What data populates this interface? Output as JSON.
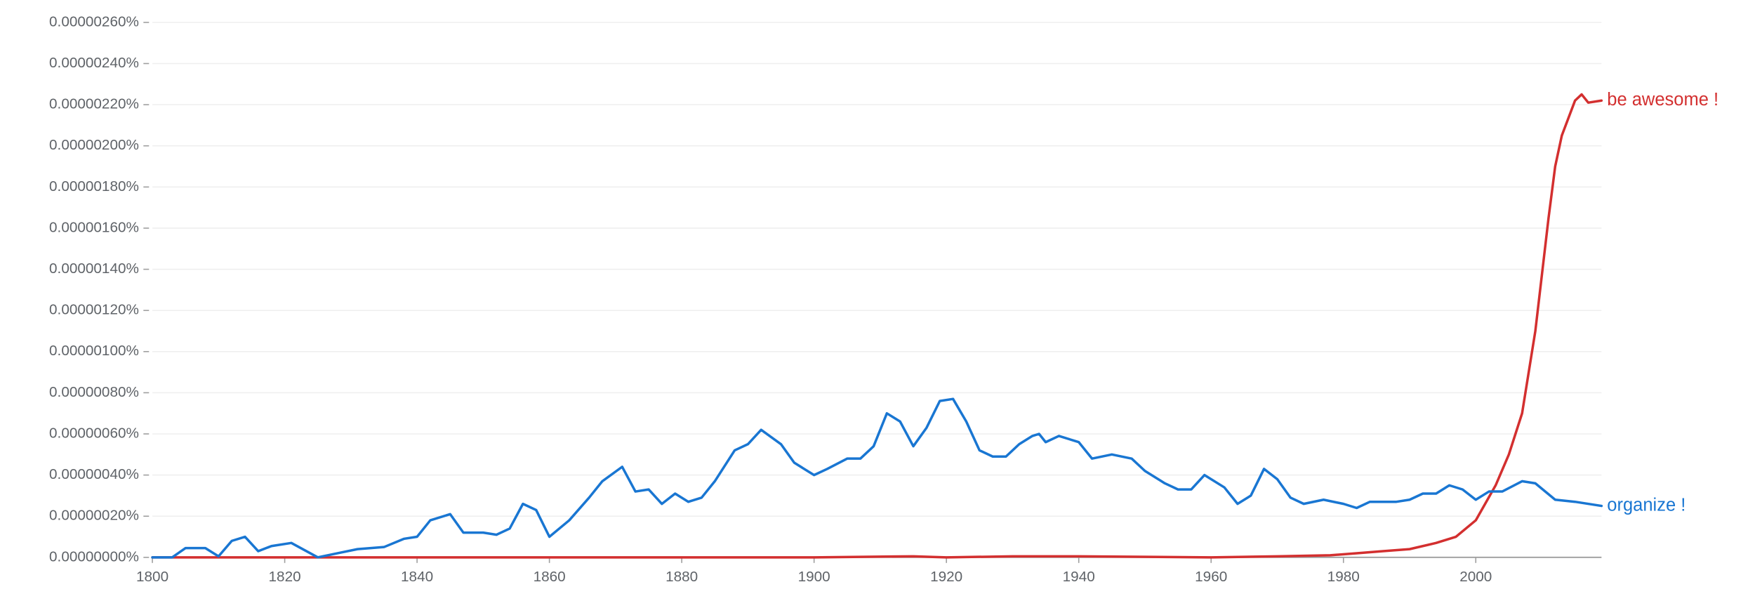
{
  "chart_data": {
    "type": "line",
    "xlim": [
      1800,
      2019
    ],
    "xticks": [
      1800,
      1820,
      1840,
      1860,
      1880,
      1900,
      1920,
      1940,
      1960,
      1980,
      2000
    ],
    "ylim": [
      0,
      2.6e-07
    ],
    "yticks": [
      {
        "value": 0,
        "label": "0.00000000%"
      },
      {
        "value": 2e-08,
        "label": "0.00000020%"
      },
      {
        "value": 4e-08,
        "label": "0.00000040%"
      },
      {
        "value": 6e-08,
        "label": "0.00000060%"
      },
      {
        "value": 8e-08,
        "label": "0.00000080%"
      },
      {
        "value": 1e-07,
        "label": "0.00000100%"
      },
      {
        "value": 1.2e-07,
        "label": "0.00000120%"
      },
      {
        "value": 1.4e-07,
        "label": "0.00000140%"
      },
      {
        "value": 1.6e-07,
        "label": "0.00000160%"
      },
      {
        "value": 1.8e-07,
        "label": "0.00000180%"
      },
      {
        "value": 2e-07,
        "label": "0.00000200%"
      },
      {
        "value": 2.2e-07,
        "label": "0.00000220%"
      },
      {
        "value": 2.4e-07,
        "label": "0.00000240%"
      },
      {
        "value": 2.6e-07,
        "label": "0.00000260%"
      }
    ],
    "grid": true,
    "series": [
      {
        "name": "be awesome !",
        "color": "#d32f2f",
        "x": [
          1800,
          1850,
          1900,
          1915,
          1920,
          1930,
          1940,
          1960,
          1970,
          1978,
          1982,
          1986,
          1990,
          1994,
          1997,
          2000,
          2003,
          2005,
          2007,
          2009,
          2011,
          2012,
          2013,
          2015,
          2016,
          2017,
          2019
        ],
        "values": [
          0,
          0,
          0,
          5e-10,
          0,
          5e-10,
          5e-10,
          0,
          5e-10,
          1e-09,
          2e-09,
          3e-09,
          4e-09,
          7e-09,
          1e-08,
          1.8e-08,
          3.5e-08,
          5e-08,
          7e-08,
          1.1e-07,
          1.65e-07,
          1.9e-07,
          2.05e-07,
          2.22e-07,
          2.25e-07,
          2.21e-07,
          2.22e-07
        ]
      },
      {
        "name": "organize !",
        "color": "#1976d2",
        "x": [
          1800,
          1803,
          1805,
          1808,
          1810,
          1812,
          1814,
          1816,
          1818,
          1821,
          1825,
          1828,
          1831,
          1835,
          1838,
          1840,
          1842,
          1845,
          1847,
          1850,
          1852,
          1854,
          1856,
          1858,
          1860,
          1863,
          1866,
          1868,
          1871,
          1873,
          1875,
          1877,
          1879,
          1881,
          1883,
          1885,
          1888,
          1890,
          1892,
          1895,
          1897,
          1900,
          1902,
          1905,
          1907,
          1909,
          1911,
          1913,
          1915,
          1917,
          1919,
          1921,
          1923,
          1925,
          1927,
          1929,
          1931,
          1933,
          1934,
          1935,
          1937,
          1940,
          1942,
          1945,
          1948,
          1950,
          1953,
          1955,
          1957,
          1959,
          1962,
          1964,
          1966,
          1968,
          1970,
          1972,
          1974,
          1977,
          1980,
          1982,
          1984,
          1986,
          1988,
          1990,
          1992,
          1994,
          1996,
          1998,
          2000,
          2002,
          2004,
          2007,
          2009,
          2012,
          2015,
          2019
        ],
        "values": [
          0,
          0,
          4.5e-09,
          4.5e-09,
          5e-10,
          8e-09,
          1e-08,
          3e-09,
          5.5e-09,
          7e-09,
          0,
          2e-09,
          4e-09,
          5e-09,
          9e-09,
          1e-08,
          1.8e-08,
          2.1e-08,
          1.2e-08,
          1.2e-08,
          1.1e-08,
          1.4e-08,
          2.6e-08,
          2.3e-08,
          1e-08,
          1.8e-08,
          2.9e-08,
          3.7e-08,
          4.4e-08,
          3.2e-08,
          3.3e-08,
          2.6e-08,
          3.1e-08,
          2.7e-08,
          2.9e-08,
          3.7e-08,
          5.2e-08,
          5.5e-08,
          6.2e-08,
          5.5e-08,
          4.6e-08,
          4e-08,
          4.3e-08,
          4.8e-08,
          4.8e-08,
          5.4e-08,
          7e-08,
          6.6e-08,
          5.4e-08,
          6.3e-08,
          7.6e-08,
          7.7e-08,
          6.6e-08,
          5.2e-08,
          4.9e-08,
          4.9e-08,
          5.5e-08,
          5.9e-08,
          6e-08,
          5.6e-08,
          5.9e-08,
          5.6e-08,
          4.8e-08,
          5e-08,
          4.8e-08,
          4.2e-08,
          3.6e-08,
          3.3e-08,
          3.3e-08,
          4e-08,
          3.4e-08,
          2.6e-08,
          3e-08,
          4.3e-08,
          3.8e-08,
          2.9e-08,
          2.6e-08,
          2.8e-08,
          2.6e-08,
          2.4e-08,
          2.7e-08,
          2.7e-08,
          2.7e-08,
          2.8e-08,
          3.1e-08,
          3.1e-08,
          3.5e-08,
          3.3e-08,
          2.8e-08,
          3.2e-08,
          3.2e-08,
          3.7e-08,
          3.6e-08,
          2.8e-08,
          2.7e-08,
          2.5e-08
        ]
      }
    ]
  }
}
